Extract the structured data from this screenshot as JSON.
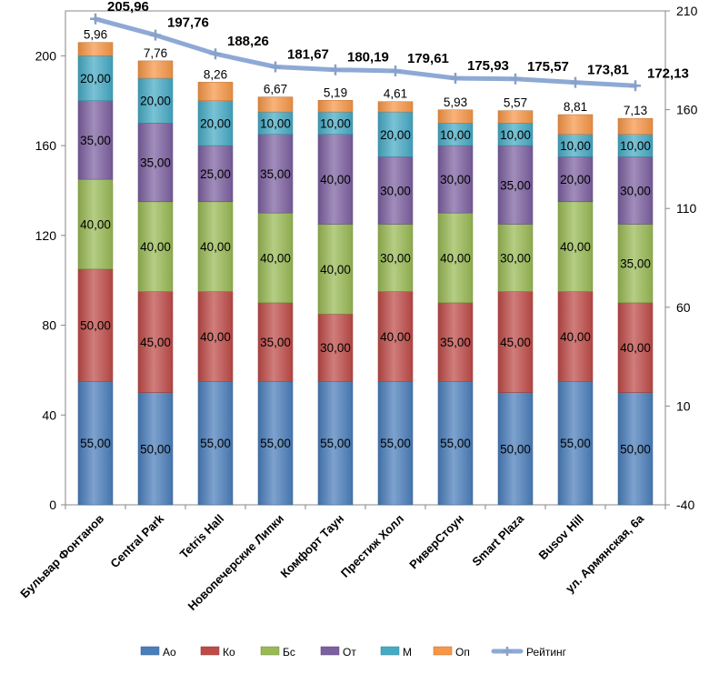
{
  "chart_data": {
    "type": "bar",
    "stacked": true,
    "categories": [
      "Бульвар Фонтанов",
      "Central Park",
      "Tetris Hall",
      "Новопечерские Липки",
      "Комфорт Таун",
      "Престиж Холл",
      "РиверСтоун",
      "Smart Plaza",
      "Busov Hill",
      "ул. Армянская, 6а"
    ],
    "series": [
      {
        "name": "Ао",
        "color": "#4a7ebb",
        "values": [
          55,
          50,
          55,
          55,
          55,
          55,
          55,
          50,
          55,
          50
        ]
      },
      {
        "name": "Ко",
        "color": "#be4b48",
        "values": [
          50,
          45,
          40,
          35,
          30,
          40,
          35,
          45,
          40,
          40
        ]
      },
      {
        "name": "Бс",
        "color": "#98b954",
        "values": [
          40,
          40,
          40,
          40,
          40,
          30,
          40,
          30,
          40,
          35
        ]
      },
      {
        "name": "От",
        "color": "#7d60a0",
        "values": [
          35,
          35,
          25,
          35,
          40,
          30,
          30,
          35,
          20,
          30
        ]
      },
      {
        "name": "М",
        "color": "#46aac5",
        "values": [
          20,
          20,
          20,
          10,
          10,
          20,
          10,
          10,
          10,
          10
        ]
      },
      {
        "name": "Оп",
        "color": "#f79646",
        "values": [
          5.96,
          7.76,
          8.26,
          6.67,
          5.19,
          4.61,
          5.93,
          5.57,
          8.81,
          7.13
        ]
      }
    ],
    "bar_labels": {
      "Ао": [
        "55,00",
        "50,00",
        "55,00",
        "55,00",
        "55,00",
        "55,00",
        "55,00",
        "50,00",
        "55,00",
        "50,00"
      ],
      "Ко": [
        "50,00",
        "45,00",
        "40,00",
        "35,00",
        "30,00",
        "40,00",
        "35,00",
        "45,00",
        "40,00",
        "40,00"
      ],
      "Бс": [
        "40,00",
        "40,00",
        "40,00",
        "40,00",
        "40,00",
        "30,00",
        "40,00",
        "30,00",
        "40,00",
        "35,00"
      ],
      "От": [
        "35,00",
        "35,00",
        "25,00",
        "35,00",
        "40,00",
        "30,00",
        "30,00",
        "35,00",
        "20,00",
        "30,00"
      ],
      "М": [
        "20,00",
        "20,00",
        "20,00",
        "10,00",
        "10,00",
        "20,00",
        "10,00",
        "10,00",
        "10,00",
        "10,00"
      ],
      "Оп": [
        "5,96",
        "7,76",
        "8,26",
        "6,67",
        "5,19",
        "4,61",
        "5,93",
        "5,57",
        "8,81",
        "7,13"
      ]
    },
    "line": {
      "name": "Рейтинг",
      "color": "#8ea9d5",
      "axis": "right",
      "values": [
        205.96,
        197.76,
        188.26,
        181.67,
        180.19,
        179.61,
        175.93,
        175.57,
        173.81,
        172.13
      ],
      "labels": [
        "205,96",
        "197,76",
        "188,26",
        "181,67",
        "180,19",
        "179,61",
        "175,93",
        "175,57",
        "173,81",
        "172,13"
      ]
    },
    "y_left": {
      "min": 0,
      "max": 220,
      "ticks": [
        0,
        40,
        80,
        120,
        160,
        200
      ]
    },
    "y_right": {
      "min": -40,
      "max": 210,
      "ticks": [
        -40,
        10,
        60,
        110,
        160,
        210
      ]
    },
    "legend": [
      "Ао",
      "Ко",
      "Бс",
      "От",
      "М",
      "Оп",
      "Рейтинг"
    ],
    "legend_position": "bottom",
    "grid": false,
    "title": "",
    "xlabel": "",
    "ylabel": ""
  }
}
